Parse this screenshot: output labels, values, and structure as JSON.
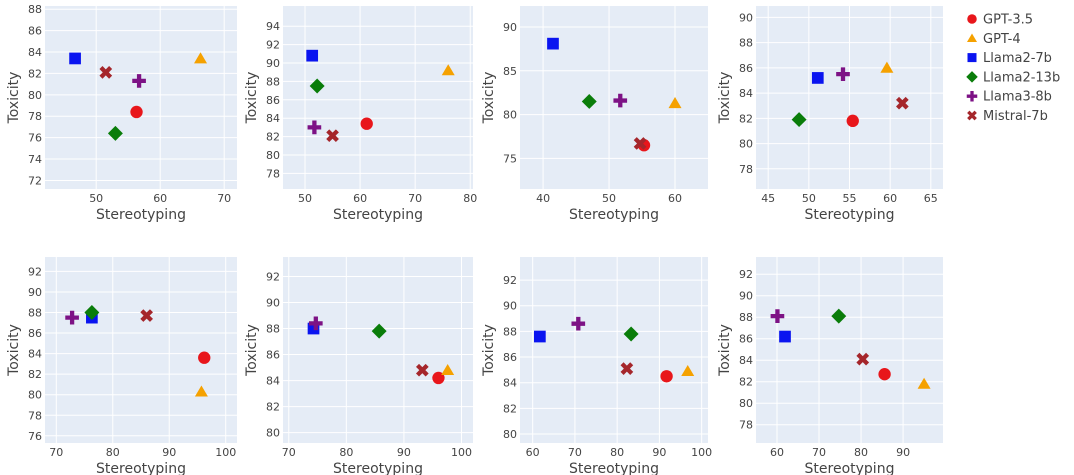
{
  "chart_data": {
    "type": "scatter",
    "grid": true,
    "legend_position": "right",
    "legend": [
      {
        "name": "GPT-3.5",
        "color": "#e8161b",
        "symbol": "circle"
      },
      {
        "name": "GPT-4",
        "color": "#f5a100",
        "symbol": "triangle-up"
      },
      {
        "name": "Llama2-7b",
        "color": "#0a14f0",
        "symbol": "square"
      },
      {
        "name": "Llama2-13b",
        "color": "#0a7d0a",
        "symbol": "diamond"
      },
      {
        "name": "Llama3-8b",
        "color": "#7d1285",
        "symbol": "cross"
      },
      {
        "name": "Mistral-7b",
        "color": "#a5262b",
        "symbol": "x"
      }
    ],
    "panels": [
      {
        "xlabel": "Stereotyping",
        "ylabel": "Toxicity",
        "xlim": [
          42,
          72
        ],
        "ylim": [
          71.2,
          88.3
        ],
        "xticks": [
          50,
          60,
          70
        ],
        "yticks": [
          72,
          74,
          76,
          78,
          80,
          82,
          84,
          86,
          88
        ],
        "points": [
          {
            "series": "GPT-3.5",
            "x": 56.3,
            "y": 78.4
          },
          {
            "series": "GPT-4",
            "x": 66.3,
            "y": 83.4
          },
          {
            "series": "Llama2-7b",
            "x": 46.7,
            "y": 83.4
          },
          {
            "series": "Llama2-13b",
            "x": 53.0,
            "y": 76.4
          },
          {
            "series": "Llama3-8b",
            "x": 56.7,
            "y": 81.3
          },
          {
            "series": "Mistral-7b",
            "x": 51.5,
            "y": 82.1
          }
        ]
      },
      {
        "xlabel": "Stereotyping",
        "ylabel": "Toxicity",
        "xlim": [
          46,
          80.5
        ],
        "ylim": [
          76.3,
          96.2
        ],
        "xticks": [
          50,
          60,
          70,
          80
        ],
        "yticks": [
          78,
          80,
          82,
          84,
          86,
          88,
          90,
          92,
          94
        ],
        "points": [
          {
            "series": "GPT-3.5",
            "x": 61.2,
            "y": 83.4
          },
          {
            "series": "GPT-4",
            "x": 76.0,
            "y": 89.2
          },
          {
            "series": "Llama2-7b",
            "x": 51.3,
            "y": 90.8
          },
          {
            "series": "Llama2-13b",
            "x": 52.2,
            "y": 87.5
          },
          {
            "series": "Llama3-8b",
            "x": 51.7,
            "y": 83.0
          },
          {
            "series": "Mistral-7b",
            "x": 55.0,
            "y": 82.1
          }
        ]
      },
      {
        "xlabel": "Stereotyping",
        "ylabel": "Toxicity",
        "xlim": [
          36.5,
          65
        ],
        "ylim": [
          71.5,
          92.4
        ],
        "xticks": [
          40,
          50,
          60
        ],
        "yticks": [
          75,
          80,
          85,
          90
        ],
        "points": [
          {
            "series": "GPT-3.5",
            "x": 55.3,
            "y": 76.5
          },
          {
            "series": "GPT-4",
            "x": 60.0,
            "y": 81.3
          },
          {
            "series": "Llama2-7b",
            "x": 41.5,
            "y": 88.1
          },
          {
            "series": "Llama2-13b",
            "x": 47.0,
            "y": 81.5
          },
          {
            "series": "Llama3-8b",
            "x": 51.7,
            "y": 81.6
          },
          {
            "series": "Mistral-7b",
            "x": 54.7,
            "y": 76.7
          }
        ]
      },
      {
        "xlabel": "Stereotyping",
        "ylabel": "Toxicity",
        "xlim": [
          43.5,
          66.5
        ],
        "ylim": [
          76.4,
          90.9
        ],
        "xticks": [
          45,
          50,
          55,
          60,
          65
        ],
        "yticks": [
          78,
          80,
          82,
          84,
          86,
          88,
          90
        ],
        "points": [
          {
            "series": "GPT-3.5",
            "x": 55.4,
            "y": 81.8
          },
          {
            "series": "GPT-4",
            "x": 59.6,
            "y": 86.0
          },
          {
            "series": "Llama2-7b",
            "x": 51.1,
            "y": 85.2
          },
          {
            "series": "Llama2-13b",
            "x": 48.8,
            "y": 81.9
          },
          {
            "series": "Llama3-8b",
            "x": 54.2,
            "y": 85.5
          },
          {
            "series": "Mistral-7b",
            "x": 61.5,
            "y": 83.2
          }
        ]
      },
      {
        "xlabel": "Stereotyping",
        "ylabel": "Toxicity",
        "xlim": [
          68,
          102
        ],
        "ylim": [
          75.3,
          93.4
        ],
        "xticks": [
          70,
          80,
          90,
          100
        ],
        "yticks": [
          76,
          78,
          80,
          82,
          84,
          86,
          88,
          90,
          92
        ],
        "points": [
          {
            "series": "GPT-3.5",
            "x": 96.2,
            "y": 83.6
          },
          {
            "series": "GPT-4",
            "x": 95.7,
            "y": 80.3
          },
          {
            "series": "Llama2-7b",
            "x": 76.3,
            "y": 87.5
          },
          {
            "series": "Llama2-13b",
            "x": 76.3,
            "y": 88.0
          },
          {
            "series": "Llama3-8b",
            "x": 72.8,
            "y": 87.5
          },
          {
            "series": "Mistral-7b",
            "x": 86.0,
            "y": 87.7
          }
        ]
      },
      {
        "xlabel": "Stereotyping",
        "ylabel": "Toxicity",
        "xlim": [
          69,
          102
        ],
        "ylim": [
          79.2,
          93.5
        ],
        "xticks": [
          70,
          80,
          90,
          100
        ],
        "yticks": [
          80,
          82,
          84,
          86,
          88,
          90,
          92
        ],
        "points": [
          {
            "series": "GPT-3.5",
            "x": 96.0,
            "y": 84.2
          },
          {
            "series": "GPT-4",
            "x": 97.6,
            "y": 84.8
          },
          {
            "series": "Llama2-7b",
            "x": 74.3,
            "y": 88.0
          },
          {
            "series": "Llama2-13b",
            "x": 85.7,
            "y": 87.8
          },
          {
            "series": "Llama3-8b",
            "x": 74.7,
            "y": 88.4
          },
          {
            "series": "Mistral-7b",
            "x": 93.2,
            "y": 84.8
          }
        ]
      },
      {
        "xlabel": "Stereotyping",
        "ylabel": "Toxicity",
        "xlim": [
          57,
          101.5
        ],
        "ylim": [
          79.3,
          93.8
        ],
        "xticks": [
          60,
          70,
          80,
          90,
          100
        ],
        "yticks": [
          80,
          82,
          84,
          86,
          88,
          90,
          92
        ],
        "points": [
          {
            "series": "GPT-3.5",
            "x": 91.7,
            "y": 84.5
          },
          {
            "series": "GPT-4",
            "x": 96.7,
            "y": 84.9
          },
          {
            "series": "Llama2-7b",
            "x": 61.7,
            "y": 87.6
          },
          {
            "series": "Llama2-13b",
            "x": 83.3,
            "y": 87.8
          },
          {
            "series": "Llama3-8b",
            "x": 70.8,
            "y": 88.6
          },
          {
            "series": "Mistral-7b",
            "x": 82.3,
            "y": 85.1
          }
        ]
      },
      {
        "xlabel": "Stereotyping",
        "ylabel": "Toxicity",
        "xlim": [
          55,
          99.5
        ],
        "ylim": [
          76.3,
          93.6
        ],
        "xticks": [
          60,
          70,
          80,
          90
        ],
        "yticks": [
          78,
          80,
          82,
          84,
          86,
          88,
          90,
          92
        ],
        "points": [
          {
            "series": "GPT-3.5",
            "x": 85.6,
            "y": 82.7
          },
          {
            "series": "GPT-4",
            "x": 95.0,
            "y": 81.8
          },
          {
            "series": "Llama2-7b",
            "x": 61.9,
            "y": 86.2
          },
          {
            "series": "Llama2-13b",
            "x": 74.7,
            "y": 88.1
          },
          {
            "series": "Llama3-8b",
            "x": 60.1,
            "y": 88.1
          },
          {
            "series": "Mistral-7b",
            "x": 80.4,
            "y": 84.1
          }
        ]
      }
    ]
  }
}
